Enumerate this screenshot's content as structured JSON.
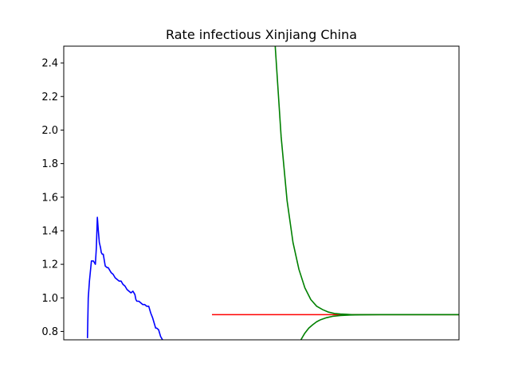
{
  "chart_data": {
    "type": "line",
    "title": "Rate infectious Xinjiang China",
    "xlabel": "",
    "ylabel": "",
    "xlim": [
      0,
      200
    ],
    "ylim": [
      0.75,
      2.5
    ],
    "yticks": [
      0.8,
      1.0,
      1.2,
      1.4,
      1.6,
      1.8,
      2.0,
      2.2,
      2.4
    ],
    "xticks_visible": false,
    "grid": false,
    "legend": "none",
    "series": [
      {
        "color": "#0000ff",
        "x": [
          12,
          12.4,
          13,
          14,
          15,
          16,
          16.5,
          17,
          17.5,
          18,
          18.6,
          19,
          19.5,
          20,
          21,
          22,
          22.5,
          23,
          24,
          25,
          26,
          27,
          28,
          29,
          30,
          31,
          32,
          33,
          34,
          35,
          35.5,
          36,
          36.5,
          37,
          38,
          39,
          40,
          41,
          42,
          43,
          44,
          45,
          46,
          46.5,
          47,
          48,
          49,
          50,
          51,
          52,
          53,
          54
        ],
        "y": [
          0.76,
          1.0,
          1.1,
          1.22,
          1.22,
          1.2,
          1.3,
          1.48,
          1.4,
          1.33,
          1.3,
          1.27,
          1.26,
          1.26,
          1.19,
          1.18,
          1.18,
          1.17,
          1.15,
          1.14,
          1.12,
          1.11,
          1.1,
          1.1,
          1.08,
          1.07,
          1.05,
          1.04,
          1.03,
          1.04,
          1.03,
          1.02,
          0.99,
          0.98,
          0.98,
          0.97,
          0.96,
          0.96,
          0.95,
          0.95,
          0.91,
          0.88,
          0.84,
          0.82,
          0.82,
          0.81,
          0.77,
          0.75,
          0.72,
          0.7,
          0.68,
          0.66
        ]
      },
      {
        "color": "#ff0000",
        "x": [
          75,
          203
        ],
        "y": [
          0.9,
          0.9
        ]
      },
      {
        "color": "#008000",
        "x": [
          107,
          110,
          113,
          116,
          119,
          122,
          125,
          128,
          131,
          134,
          137,
          140,
          143,
          146,
          150,
          155,
          160,
          170,
          180,
          190,
          203
        ],
        "y": [
          2.5,
          1.96,
          1.58,
          1.33,
          1.17,
          1.06,
          0.99,
          0.95,
          0.93,
          0.915,
          0.907,
          0.904,
          0.902,
          0.9,
          0.9,
          0.9,
          0.9,
          0.9,
          0.9,
          0.9,
          0.9
        ]
      },
      {
        "color": "#008000",
        "x": [
          120,
          121,
          122,
          124,
          126,
          128,
          130,
          133,
          136,
          140,
          145,
          150,
          160,
          170,
          180,
          190,
          203
        ],
        "y": [
          0.75,
          0.77,
          0.79,
          0.82,
          0.84,
          0.858,
          0.87,
          0.882,
          0.89,
          0.895,
          0.898,
          0.899,
          0.9,
          0.9,
          0.9,
          0.9,
          0.9
        ]
      }
    ]
  }
}
